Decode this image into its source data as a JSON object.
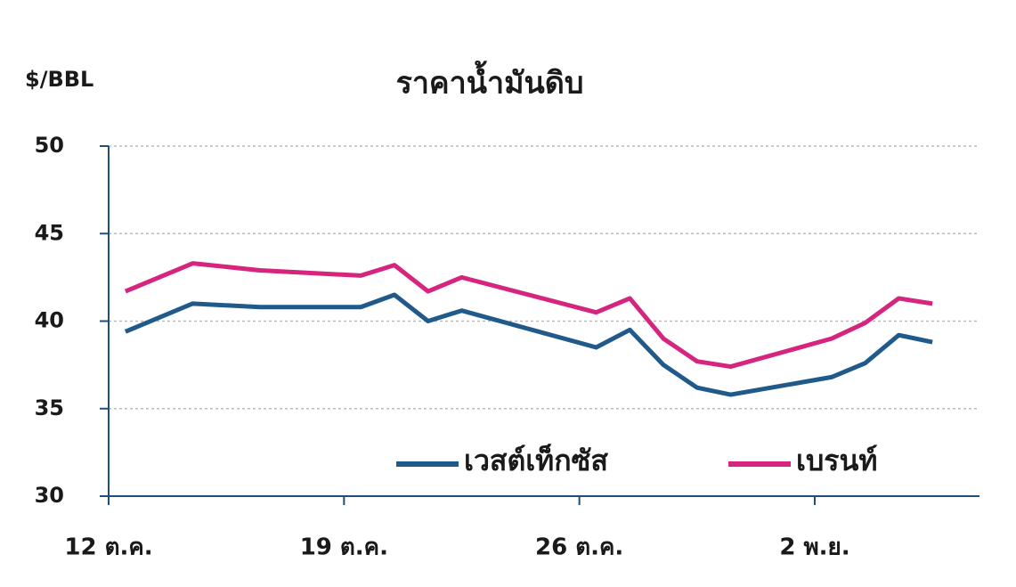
{
  "chart_data": {
    "type": "line",
    "title": "ราคาน้ำมันดิบ",
    "y_label": "$/BBL",
    "x": [
      0,
      2,
      4,
      7,
      8,
      9,
      10,
      14,
      15,
      16,
      17,
      18,
      21,
      22,
      23,
      24
    ],
    "xlim": [
      -0.5,
      25.4
    ],
    "xticks": [
      {
        "value": -0.5,
        "label": "12 ต.ค."
      },
      {
        "value": 6.5,
        "label": "19 ต.ค."
      },
      {
        "value": 13.5,
        "label": "26 ต.ค."
      },
      {
        "value": 20.5,
        "label": "2 พ.ย."
      }
    ],
    "ylim": [
      30,
      50
    ],
    "yticks": [
      30,
      35,
      40,
      45,
      50
    ],
    "grid": true,
    "series": [
      {
        "name": "เวสต์เท็กซัส",
        "color": "#1f5a8a",
        "values": [
          39.4,
          41.0,
          40.8,
          40.8,
          41.5,
          40.0,
          40.6,
          38.5,
          39.5,
          37.5,
          36.2,
          35.8,
          36.8,
          37.6,
          39.2,
          38.8
        ]
      },
      {
        "name": "เบรนท์",
        "color": "#d6257f",
        "values": [
          41.7,
          43.3,
          42.9,
          42.6,
          43.2,
          41.7,
          42.5,
          40.5,
          41.3,
          39.0,
          37.7,
          37.4,
          39.0,
          39.9,
          41.3,
          41.0
        ]
      }
    ]
  }
}
